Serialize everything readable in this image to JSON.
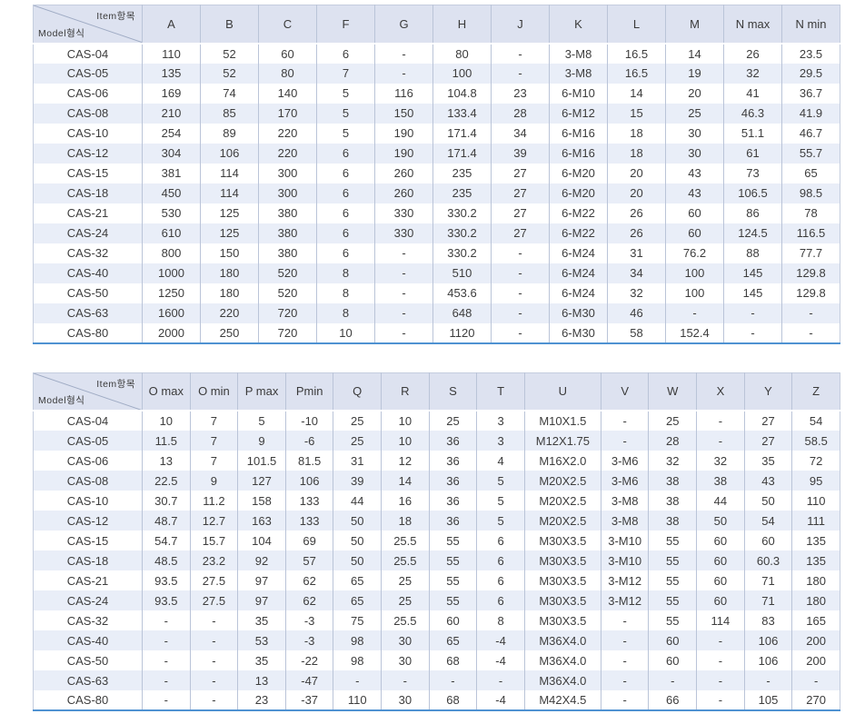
{
  "colors": {
    "header_bg": "#dde2f0",
    "stripe_bg": "#e9eef8",
    "grid_line": "#bac4d8",
    "accent_bottom_line": "#4f92d2"
  },
  "tables": [
    {
      "corner_top": "Item항목",
      "corner_bottom": "Model형식",
      "columns": [
        "A",
        "B",
        "C",
        "F",
        "G",
        "H",
        "J",
        "K",
        "L",
        "M",
        "N max",
        "N min"
      ],
      "rows": [
        {
          "model": "CAS-04",
          "values": [
            "110",
            "52",
            "60",
            "6",
            "-",
            "80",
            "-",
            "3-M8",
            "16.5",
            "14",
            "26",
            "23.5"
          ]
        },
        {
          "model": "CAS-05",
          "values": [
            "135",
            "52",
            "80",
            "7",
            "-",
            "100",
            "-",
            "3-M8",
            "16.5",
            "19",
            "32",
            "29.5"
          ]
        },
        {
          "model": "CAS-06",
          "values": [
            "169",
            "74",
            "140",
            "5",
            "116",
            "104.8",
            "23",
            "6-M10",
            "14",
            "20",
            "41",
            "36.7"
          ]
        },
        {
          "model": "CAS-08",
          "values": [
            "210",
            "85",
            "170",
            "5",
            "150",
            "133.4",
            "28",
            "6-M12",
            "15",
            "25",
            "46.3",
            "41.9"
          ]
        },
        {
          "model": "CAS-10",
          "values": [
            "254",
            "89",
            "220",
            "5",
            "190",
            "171.4",
            "34",
            "6-M16",
            "18",
            "30",
            "51.1",
            "46.7"
          ]
        },
        {
          "model": "CAS-12",
          "values": [
            "304",
            "106",
            "220",
            "6",
            "190",
            "171.4",
            "39",
            "6-M16",
            "18",
            "30",
            "61",
            "55.7"
          ]
        },
        {
          "model": "CAS-15",
          "values": [
            "381",
            "114",
            "300",
            "6",
            "260",
            "235",
            "27",
            "6-M20",
            "20",
            "43",
            "73",
            "65"
          ]
        },
        {
          "model": "CAS-18",
          "values": [
            "450",
            "114",
            "300",
            "6",
            "260",
            "235",
            "27",
            "6-M20",
            "20",
            "43",
            "106.5",
            "98.5"
          ]
        },
        {
          "model": "CAS-21",
          "values": [
            "530",
            "125",
            "380",
            "6",
            "330",
            "330.2",
            "27",
            "6-M22",
            "26",
            "60",
            "86",
            "78"
          ]
        },
        {
          "model": "CAS-24",
          "values": [
            "610",
            "125",
            "380",
            "6",
            "330",
            "330.2",
            "27",
            "6-M22",
            "26",
            "60",
            "124.5",
            "116.5"
          ]
        },
        {
          "model": "CAS-32",
          "values": [
            "800",
            "150",
            "380",
            "6",
            "-",
            "330.2",
            "-",
            "6-M24",
            "31",
            "76.2",
            "88",
            "77.7"
          ]
        },
        {
          "model": "CAS-40",
          "values": [
            "1000",
            "180",
            "520",
            "8",
            "-",
            "510",
            "-",
            "6-M24",
            "34",
            "100",
            "145",
            "129.8"
          ]
        },
        {
          "model": "CAS-50",
          "values": [
            "1250",
            "180",
            "520",
            "8",
            "-",
            "453.6",
            "-",
            "6-M24",
            "32",
            "100",
            "145",
            "129.8"
          ]
        },
        {
          "model": "CAS-63",
          "values": [
            "1600",
            "220",
            "720",
            "8",
            "-",
            "648",
            "-",
            "6-M30",
            "46",
            "-",
            "-",
            "-"
          ]
        },
        {
          "model": "CAS-80",
          "values": [
            "2000",
            "250",
            "720",
            "10",
            "-",
            "1120",
            "-",
            "6-M30",
            "58",
            "152.4",
            "-",
            "-"
          ]
        }
      ]
    },
    {
      "corner_top": "Item항목",
      "corner_bottom": "Model형식",
      "columns": [
        "O max",
        "O min",
        "P max",
        "Pmin",
        "Q",
        "R",
        "S",
        "T",
        "U",
        "V",
        "W",
        "X",
        "Y",
        "Z"
      ],
      "rows": [
        {
          "model": "CAS-04",
          "values": [
            "10",
            "7",
            "5",
            "-10",
            "25",
            "10",
            "25",
            "3",
            "M10X1.5",
            "-",
            "25",
            "-",
            "27",
            "54"
          ]
        },
        {
          "model": "CAS-05",
          "values": [
            "11.5",
            "7",
            "9",
            "-6",
            "25",
            "10",
            "36",
            "3",
            "M12X1.75",
            "-",
            "28",
            "-",
            "27",
            "58.5"
          ]
        },
        {
          "model": "CAS-06",
          "values": [
            "13",
            "7",
            "101.5",
            "81.5",
            "31",
            "12",
            "36",
            "4",
            "M16X2.0",
            "3-M6",
            "32",
            "32",
            "35",
            "72"
          ]
        },
        {
          "model": "CAS-08",
          "values": [
            "22.5",
            "9",
            "127",
            "106",
            "39",
            "14",
            "36",
            "5",
            "M20X2.5",
            "3-M6",
            "38",
            "38",
            "43",
            "95"
          ]
        },
        {
          "model": "CAS-10",
          "values": [
            "30.7",
            "11.2",
            "158",
            "133",
            "44",
            "16",
            "36",
            "5",
            "M20X2.5",
            "3-M8",
            "38",
            "44",
            "50",
            "110"
          ]
        },
        {
          "model": "CAS-12",
          "values": [
            "48.7",
            "12.7",
            "163",
            "133",
            "50",
            "18",
            "36",
            "5",
            "M20X2.5",
            "3-M8",
            "38",
            "50",
            "54",
            "111"
          ]
        },
        {
          "model": "CAS-15",
          "values": [
            "54.7",
            "15.7",
            "104",
            "69",
            "50",
            "25.5",
            "55",
            "6",
            "M30X3.5",
            "3-M10",
            "55",
            "60",
            "60",
            "135"
          ]
        },
        {
          "model": "CAS-18",
          "values": [
            "48.5",
            "23.2",
            "92",
            "57",
            "50",
            "25.5",
            "55",
            "6",
            "M30X3.5",
            "3-M10",
            "55",
            "60",
            "60.3",
            "135"
          ]
        },
        {
          "model": "CAS-21",
          "values": [
            "93.5",
            "27.5",
            "97",
            "62",
            "65",
            "25",
            "55",
            "6",
            "M30X3.5",
            "3-M12",
            "55",
            "60",
            "71",
            "180"
          ]
        },
        {
          "model": "CAS-24",
          "values": [
            "93.5",
            "27.5",
            "97",
            "62",
            "65",
            "25",
            "55",
            "6",
            "M30X3.5",
            "3-M12",
            "55",
            "60",
            "71",
            "180"
          ]
        },
        {
          "model": "CAS-32",
          "values": [
            "-",
            "-",
            "35",
            "-3",
            "75",
            "25.5",
            "60",
            "8",
            "M30X3.5",
            "-",
            "55",
            "114",
            "83",
            "165"
          ]
        },
        {
          "model": "CAS-40",
          "values": [
            "-",
            "-",
            "53",
            "-3",
            "98",
            "30",
            "65",
            "-4",
            "M36X4.0",
            "-",
            "60",
            "-",
            "106",
            "200"
          ]
        },
        {
          "model": "CAS-50",
          "values": [
            "-",
            "-",
            "35",
            "-22",
            "98",
            "30",
            "68",
            "-4",
            "M36X4.0",
            "-",
            "60",
            "-",
            "106",
            "200"
          ]
        },
        {
          "model": "CAS-63",
          "values": [
            "-",
            "-",
            "13",
            "-47",
            "-",
            "-",
            "-",
            "-",
            "M36X4.0",
            "-",
            "-",
            "-",
            "-",
            "-"
          ]
        },
        {
          "model": "CAS-80",
          "values": [
            "-",
            "-",
            "23",
            "-37",
            "110",
            "30",
            "68",
            "-4",
            "M42X4.5",
            "-",
            "66",
            "-",
            "105",
            "270"
          ]
        }
      ]
    }
  ]
}
